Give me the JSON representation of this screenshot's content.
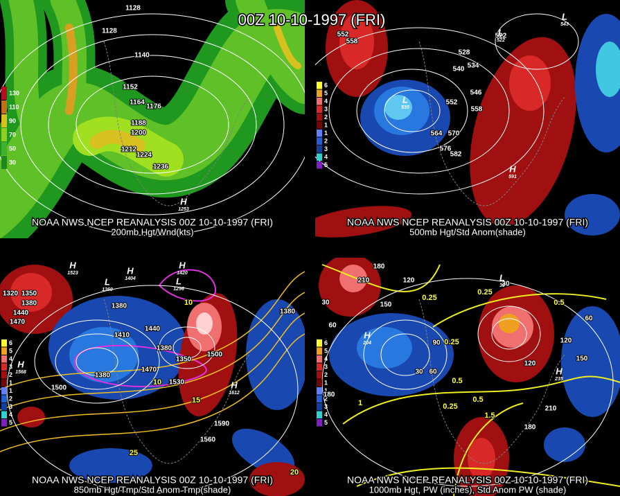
{
  "title": "00Z 10-10-1997 (FRI)",
  "panels": [
    {
      "caption": [
        "NOAA NWS NCEP REANALYSIS 00Z 10-10-1997 (FRI)",
        "200mb Hgt/Wnd(kts)"
      ],
      "legend": [
        "130",
        "110",
        "90",
        "70",
        "50",
        "30"
      ],
      "labels": [
        "1128",
        "1128",
        "1140",
        "1152",
        "1164",
        "1176",
        "1188",
        "1200",
        "1212",
        "1224",
        "1236"
      ],
      "centers": [
        {
          "letter": "H",
          "value": "1253"
        }
      ]
    },
    {
      "caption": [
        "NOAA NWS NCEP REANALYSIS 00Z 10-10-1997 (FRI)",
        "500mb Hgt/Std Anom(shade)"
      ],
      "legend": [
        "6",
        "5",
        "4",
        "3",
        "2",
        "1",
        "1",
        "2",
        "3",
        "4",
        "5"
      ],
      "labels": [
        "552",
        "558",
        "522",
        "528",
        "540",
        "534",
        "546",
        "552",
        "558",
        "564",
        "570",
        "576",
        "582"
      ],
      "centers": [
        {
          "letter": "L",
          "value": "535"
        },
        {
          "letter": "H",
          "value": "591"
        },
        {
          "letter": "L",
          "value": "543"
        },
        {
          "letter": "L",
          "value": "522"
        }
      ]
    },
    {
      "caption": [
        "NOAA NWS NCEP REANALYSIS 00Z 10-10-1997 (FRI)",
        "850mb Hgt/Tmp/Std Anom Tmp(shade)"
      ],
      "legend": [
        "6",
        "5",
        "4",
        "3",
        "2",
        "1",
        "1",
        "2",
        "3",
        "4",
        "5"
      ],
      "labels": [
        "1320",
        "1350",
        "1380",
        "1440",
        "1470",
        "1380",
        "1410",
        "1440",
        "1380",
        "1350",
        "1470",
        "1380",
        "1530",
        "1500",
        "1500",
        "1590",
        "1560",
        "1380"
      ],
      "temp_labels": [
        "10",
        "10",
        "15",
        "25",
        "20"
      ],
      "centers": [
        {
          "letter": "H",
          "value": "1523"
        },
        {
          "letter": "L",
          "value": "1360"
        },
        {
          "letter": "H",
          "value": "1404"
        },
        {
          "letter": "H",
          "value": "1420"
        },
        {
          "letter": "L",
          "value": "1296"
        },
        {
          "letter": "H",
          "value": "1568"
        },
        {
          "letter": "H",
          "value": "1612"
        }
      ]
    },
    {
      "caption": [
        "NOAA NWS NCEP REANALYSIS 00Z 10-10-1997 (FRI)",
        "1000mb Hgt, PW (inches), Std Anom PW (shade)"
      ],
      "legend": [
        "6",
        "5",
        "4",
        "3",
        "2",
        "1",
        "1",
        "2",
        "3",
        "4",
        "5"
      ],
      "labels": [
        "150",
        "210",
        "180",
        "120",
        "30",
        "60",
        "90",
        "60",
        "30",
        "120",
        "150",
        "120",
        "60",
        "30",
        "180",
        "210",
        "180"
      ],
      "pw_labels": [
        "0.25",
        "0.25",
        "0.5",
        "0.25",
        "0.5",
        "0.5",
        "0.25",
        "1.5",
        "1"
      ],
      "centers": [
        {
          "letter": "H",
          "value": "204"
        },
        {
          "letter": "H",
          "value": "235"
        },
        {
          "letter": "L",
          "value": "30"
        }
      ]
    }
  ]
}
